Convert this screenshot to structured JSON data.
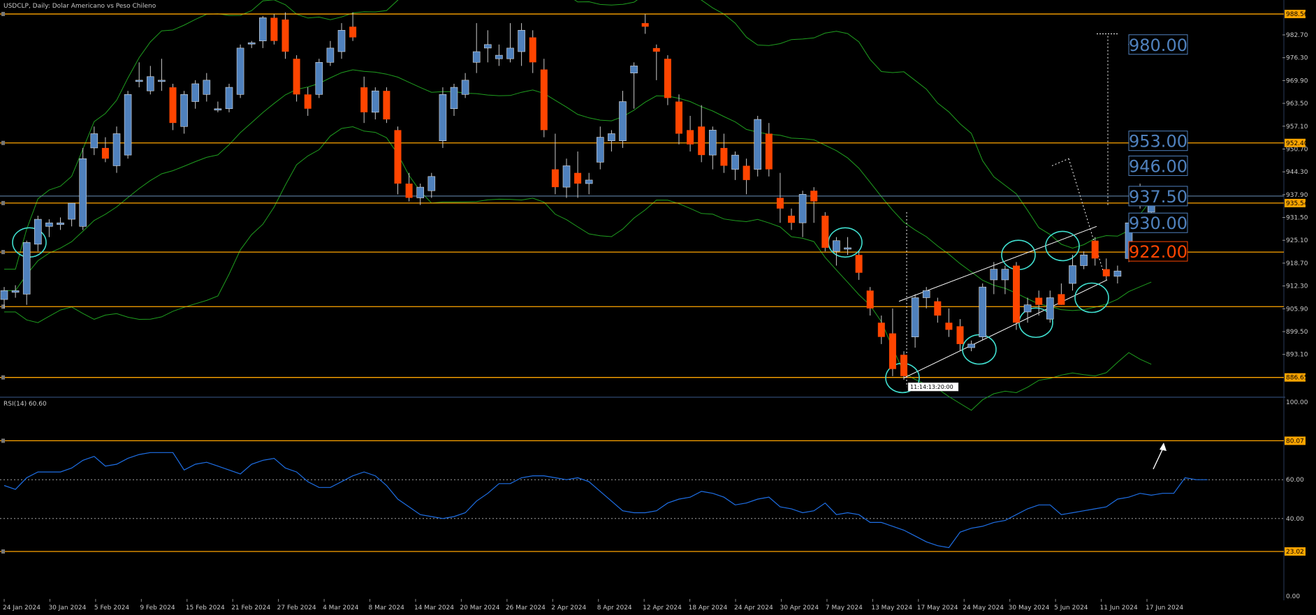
{
  "header": {
    "symbol_line": "USDCLP, Daily:  Dolar Americano vs Peso Chileno",
    "rsi_line": "RSI(14) 60.60"
  },
  "colors": {
    "background": "#000000",
    "bull": "#4f81bd",
    "bear": "#ff4500",
    "level_line": "#ffa500",
    "bollinger": "#1f9e1f",
    "rsi_line": "#1e6fe6",
    "annotation_circle": "#40e0d0",
    "annotation_line": "#ffffff",
    "label_blue_text": "#4f81bd",
    "label_red_text": "#ff4500"
  },
  "chart_data": [
    {
      "type": "candlestick",
      "title": "USDCLP, Daily:  Dolar Americano vs Peso Chileno",
      "ylim": [
        881.3,
        991.7
      ],
      "y_ticks": [
        "988.56",
        "982.70",
        "976.30",
        "969.90",
        "963.50",
        "957.10",
        "950.70",
        "944.30",
        "937.90",
        "931.50",
        "925.10",
        "918.70",
        "912.30",
        "905.90",
        "899.50",
        "893.10",
        "886.65"
      ],
      "x_tick_labels": [
        "24 Jan 2024",
        "30 Jan 2024",
        "5 Feb 2024",
        "9 Feb 2024",
        "15 Feb 2024",
        "21 Feb 2024",
        "27 Feb 2024",
        "4 Mar 2024",
        "8 Mar 2024",
        "14 Mar 2024",
        "20 Mar 2024",
        "26 Mar 2024",
        "2 Apr 2024",
        "8 Apr 2024",
        "12 Apr 2024",
        "18 Apr 2024",
        "24 Apr 2024",
        "30 Apr 2024",
        "7 May 2024",
        "13 May 2024",
        "17 May 2024",
        "24 May 2024",
        "30 May 2024",
        "5 Jun 2024",
        "11 Jun 2024",
        "17 Jun 2024"
      ],
      "price_levels": [
        {
          "value": 988.56,
          "label": "988.56"
        },
        {
          "value": 952.4,
          "label": "952.40"
        },
        {
          "value": 935.54,
          "label": "935.54"
        },
        {
          "value": 921.8,
          "label": ""
        },
        {
          "value": 906.5,
          "label": ""
        },
        {
          "value": 886.65,
          "label": "886.65"
        }
      ],
      "current_price_line": 937.5,
      "target_labels": [
        {
          "text": "980.00",
          "value": 980.0,
          "color": "blue"
        },
        {
          "text": "953.00",
          "value": 953.0,
          "color": "blue"
        },
        {
          "text": "946.00",
          "value": 946.0,
          "color": "blue"
        },
        {
          "text": "937.50",
          "value": 937.5,
          "color": "blue"
        },
        {
          "text": "930.00",
          "value": 930.0,
          "color": "blue"
        },
        {
          "text": "922.00",
          "value": 922.0,
          "color": "red"
        }
      ],
      "marker_label": "11:14:13:20:00",
      "candles": [
        {
          "o": 908.5,
          "h": 912.0,
          "l": 906.0,
          "c": 911.0
        },
        {
          "o": 910.5,
          "h": 912.5,
          "l": 909.0,
          "c": 911.0
        },
        {
          "o": 910.0,
          "h": 925.0,
          "l": 907.0,
          "c": 924.5
        },
        {
          "o": 924.0,
          "h": 932.0,
          "l": 922.0,
          "c": 931.0
        },
        {
          "o": 929.0,
          "h": 931.0,
          "l": 926.0,
          "c": 930.0
        },
        {
          "o": 929.5,
          "h": 931.5,
          "l": 928.0,
          "c": 930.0
        },
        {
          "o": 931.0,
          "h": 935.0,
          "l": 929.0,
          "c": 935.5
        },
        {
          "o": 929.0,
          "h": 951.0,
          "l": 928.0,
          "c": 948.0
        },
        {
          "o": 951.0,
          "h": 957.0,
          "l": 949.0,
          "c": 955.0
        },
        {
          "o": 951.0,
          "h": 954.0,
          "l": 947.0,
          "c": 948.0
        },
        {
          "o": 946.0,
          "h": 957.0,
          "l": 944.0,
          "c": 955.0
        },
        {
          "o": 949.0,
          "h": 967.0,
          "l": 948.0,
          "c": 966.0
        },
        {
          "o": 970.0,
          "h": 975.0,
          "l": 968.0,
          "c": 970.0
        },
        {
          "o": 967.0,
          "h": 974.0,
          "l": 966.0,
          "c": 971.0
        },
        {
          "o": 970.0,
          "h": 976.0,
          "l": 967.0,
          "c": 970.0
        },
        {
          "o": 968.0,
          "h": 969.0,
          "l": 956.0,
          "c": 958.0
        },
        {
          "o": 957.0,
          "h": 967.0,
          "l": 955.0,
          "c": 966.0
        },
        {
          "o": 964.0,
          "h": 970.0,
          "l": 962.0,
          "c": 969.0
        },
        {
          "o": 966.0,
          "h": 972.0,
          "l": 964.0,
          "c": 970.0
        },
        {
          "o": 962.0,
          "h": 964.0,
          "l": 961.0,
          "c": 962.0
        },
        {
          "o": 962.0,
          "h": 969.0,
          "l": 961.0,
          "c": 968.0
        },
        {
          "o": 966.0,
          "h": 980.0,
          "l": 965.0,
          "c": 979.0
        },
        {
          "o": 980.5,
          "h": 981.0,
          "l": 979.0,
          "c": 980.5
        },
        {
          "o": 981.0,
          "h": 988.0,
          "l": 979.0,
          "c": 987.5
        },
        {
          "o": 987.5,
          "h": 988.5,
          "l": 980.0,
          "c": 981.0
        },
        {
          "o": 987.0,
          "h": 989.0,
          "l": 976.0,
          "c": 978.0
        },
        {
          "o": 976.0,
          "h": 977.0,
          "l": 964.0,
          "c": 966.0
        },
        {
          "o": 966.0,
          "h": 968.0,
          "l": 960.0,
          "c": 962.0
        },
        {
          "o": 966.0,
          "h": 976.0,
          "l": 965.0,
          "c": 975.0
        },
        {
          "o": 975.0,
          "h": 981.0,
          "l": 974.0,
          "c": 979.0
        },
        {
          "o": 978.0,
          "h": 986.0,
          "l": 976.0,
          "c": 984.0
        },
        {
          "o": 985.0,
          "h": 989.0,
          "l": 981.0,
          "c": 982.0
        },
        {
          "o": 968.0,
          "h": 971.0,
          "l": 958.0,
          "c": 961.0
        },
        {
          "o": 961.0,
          "h": 968.0,
          "l": 959.0,
          "c": 967.0
        },
        {
          "o": 967.0,
          "h": 968.0,
          "l": 958.0,
          "c": 959.0
        },
        {
          "o": 956.0,
          "h": 957.0,
          "l": 938.0,
          "c": 941.0
        },
        {
          "o": 941.0,
          "h": 944.0,
          "l": 936.0,
          "c": 937.0
        },
        {
          "o": 937.0,
          "h": 941.0,
          "l": 935.0,
          "c": 940.0
        },
        {
          "o": 939.0,
          "h": 944.0,
          "l": 937.0,
          "c": 943.0
        },
        {
          "o": 953.0,
          "h": 968.0,
          "l": 951.0,
          "c": 966.0
        },
        {
          "o": 962.0,
          "h": 969.0,
          "l": 960.0,
          "c": 968.0
        },
        {
          "o": 966.0,
          "h": 972.0,
          "l": 965.0,
          "c": 970.0
        },
        {
          "o": 975.0,
          "h": 986.0,
          "l": 972.0,
          "c": 978.0
        },
        {
          "o": 979.0,
          "h": 984.0,
          "l": 975.0,
          "c": 980.0
        },
        {
          "o": 976.0,
          "h": 980.0,
          "l": 974.0,
          "c": 977.0
        },
        {
          "o": 976.0,
          "h": 986.0,
          "l": 975.0,
          "c": 979.0
        },
        {
          "o": 978.0,
          "h": 986.0,
          "l": 974.0,
          "c": 984.0
        },
        {
          "o": 982.0,
          "h": 984.0,
          "l": 972.0,
          "c": 975.0
        },
        {
          "o": 973.0,
          "h": 976.0,
          "l": 954.0,
          "c": 956.0
        },
        {
          "o": 945.0,
          "h": 955.0,
          "l": 938.0,
          "c": 940.0
        },
        {
          "o": 940.0,
          "h": 948.0,
          "l": 937.0,
          "c": 946.0
        },
        {
          "o": 944.0,
          "h": 950.0,
          "l": 937.0,
          "c": 941.0
        },
        {
          "o": 941.0,
          "h": 944.0,
          "l": 938.0,
          "c": 942.0
        },
        {
          "o": 947.0,
          "h": 957.0,
          "l": 945.0,
          "c": 954.0
        },
        {
          "o": 953.0,
          "h": 956.0,
          "l": 950.0,
          "c": 955.0
        },
        {
          "o": 953.0,
          "h": 967.0,
          "l": 951.0,
          "c": 964.0
        },
        {
          "o": 972.0,
          "h": 975.0,
          "l": 962.0,
          "c": 974.0
        },
        {
          "o": 986.0,
          "h": 988.5,
          "l": 983.0,
          "c": 985.0
        },
        {
          "o": 979.0,
          "h": 980.0,
          "l": 970.0,
          "c": 978.0
        },
        {
          "o": 976.0,
          "h": 977.0,
          "l": 963.0,
          "c": 965.0
        },
        {
          "o": 964.0,
          "h": 966.0,
          "l": 952.0,
          "c": 955.0
        },
        {
          "o": 956.0,
          "h": 960.0,
          "l": 950.0,
          "c": 952.0
        },
        {
          "o": 957.0,
          "h": 963.0,
          "l": 947.0,
          "c": 949.0
        },
        {
          "o": 949.0,
          "h": 957.0,
          "l": 945.0,
          "c": 956.0
        },
        {
          "o": 951.0,
          "h": 955.0,
          "l": 944.0,
          "c": 946.0
        },
        {
          "o": 945.0,
          "h": 950.0,
          "l": 942.0,
          "c": 949.0
        },
        {
          "o": 946.0,
          "h": 948.0,
          "l": 938.0,
          "c": 942.0
        },
        {
          "o": 945.0,
          "h": 960.0,
          "l": 943.0,
          "c": 959.0
        },
        {
          "o": 955.0,
          "h": 958.0,
          "l": 943.0,
          "c": 945.0
        },
        {
          "o": 937.0,
          "h": 944.0,
          "l": 930.0,
          "c": 934.0
        },
        {
          "o": 932.0,
          "h": 934.0,
          "l": 928.0,
          "c": 930.0
        },
        {
          "o": 930.0,
          "h": 939.0,
          "l": 926.0,
          "c": 938.0
        },
        {
          "o": 939.0,
          "h": 940.0,
          "l": 930.0,
          "c": 936.0
        },
        {
          "o": 932.0,
          "h": 933.0,
          "l": 922.0,
          "c": 923.0
        },
        {
          "o": 922.0,
          "h": 926.0,
          "l": 918.0,
          "c": 925.0
        },
        {
          "o": 923.0,
          "h": 926.0,
          "l": 921.0,
          "c": 923.0
        },
        {
          "o": 921.0,
          "h": 922.0,
          "l": 914.0,
          "c": 916.0
        },
        {
          "o": 911.0,
          "h": 912.0,
          "l": 904.0,
          "c": 906.0
        },
        {
          "o": 902.0,
          "h": 904.0,
          "l": 896.0,
          "c": 898.0
        },
        {
          "o": 899.0,
          "h": 906.0,
          "l": 887.0,
          "c": 889.0
        },
        {
          "o": 893.0,
          "h": 894.0,
          "l": 886.0,
          "c": 887.0
        },
        {
          "o": 898.0,
          "h": 910.0,
          "l": 895.0,
          "c": 909.0
        },
        {
          "o": 909.0,
          "h": 912.0,
          "l": 906.0,
          "c": 911.0
        },
        {
          "o": 908.0,
          "h": 909.0,
          "l": 902.0,
          "c": 904.0
        },
        {
          "o": 902.0,
          "h": 906.0,
          "l": 898.0,
          "c": 900.0
        },
        {
          "o": 901.0,
          "h": 903.0,
          "l": 894.0,
          "c": 896.0
        },
        {
          "o": 895.0,
          "h": 897.0,
          "l": 894.0,
          "c": 896.0
        },
        {
          "o": 898.0,
          "h": 913.0,
          "l": 897.0,
          "c": 912.0
        },
        {
          "o": 914.0,
          "h": 919.0,
          "l": 910.0,
          "c": 917.0
        },
        {
          "o": 914.0,
          "h": 918.0,
          "l": 910.0,
          "c": 917.0
        },
        {
          "o": 918.0,
          "h": 919.0,
          "l": 900.0,
          "c": 902.0
        },
        {
          "o": 905.0,
          "h": 909.0,
          "l": 902.0,
          "c": 907.0
        },
        {
          "o": 909.0,
          "h": 911.0,
          "l": 904.0,
          "c": 907.0
        },
        {
          "o": 903.0,
          "h": 911.0,
          "l": 902.0,
          "c": 909.0
        },
        {
          "o": 910.0,
          "h": 913.0,
          "l": 907.0,
          "c": 907.0
        },
        {
          "o": 913.0,
          "h": 921.0,
          "l": 911.0,
          "c": 918.0
        },
        {
          "o": 918.0,
          "h": 922.0,
          "l": 917.0,
          "c": 921.0
        },
        {
          "o": 925.0,
          "h": 926.0,
          "l": 918.0,
          "c": 920.0
        },
        {
          "o": 917.0,
          "h": 920.0,
          "l": 914.0,
          "c": 915.0
        },
        {
          "o": 915.0,
          "h": 918.0,
          "l": 913.0,
          "c": 916.5
        },
        {
          "o": 920.0,
          "h": 931.0,
          "l": 919.0,
          "c": 930.0
        },
        {
          "o": 937.0,
          "h": 941.0,
          "l": 934.0,
          "c": 936.0
        },
        {
          "o": 933.0,
          "h": 938.0,
          "l": 932.0,
          "c": 937.0
        }
      ]
    },
    {
      "type": "line",
      "title": "RSI(14) 60.60",
      "ylim": [
        0,
        100
      ],
      "y_ticks": [
        "100.00",
        "80.07",
        "60.00",
        "40.00",
        "23.02",
        "0.00"
      ],
      "levels": [
        {
          "value": 80.07,
          "label": "80.07"
        },
        {
          "value": 23.02,
          "label": "23.02"
        }
      ],
      "dotted_levels": [
        60,
        40
      ],
      "series": [
        {
          "values": [
            57,
            55,
            61,
            64,
            64,
            64,
            66,
            70,
            72,
            67,
            68,
            71,
            73,
            74,
            74,
            74,
            65,
            68,
            69,
            67,
            65,
            63,
            68,
            70,
            71,
            66,
            64,
            59,
            56,
            56,
            59,
            62,
            64,
            62,
            57,
            50,
            46,
            42,
            41,
            40,
            41,
            43,
            49,
            53,
            58,
            58,
            61,
            62,
            62,
            61,
            60,
            61,
            59,
            54,
            49,
            44,
            43,
            43,
            44,
            48,
            50,
            51,
            54,
            53,
            51,
            47,
            48,
            50,
            51,
            46,
            45,
            43,
            44,
            48,
            42,
            43,
            42,
            38,
            38,
            36,
            34,
            31,
            28,
            26,
            25,
            33,
            35,
            36,
            38,
            39,
            42,
            45,
            47,
            47,
            42,
            43,
            44,
            45,
            46,
            50,
            51,
            53,
            52,
            53,
            53,
            61,
            60,
            60
          ]
        }
      ]
    }
  ]
}
